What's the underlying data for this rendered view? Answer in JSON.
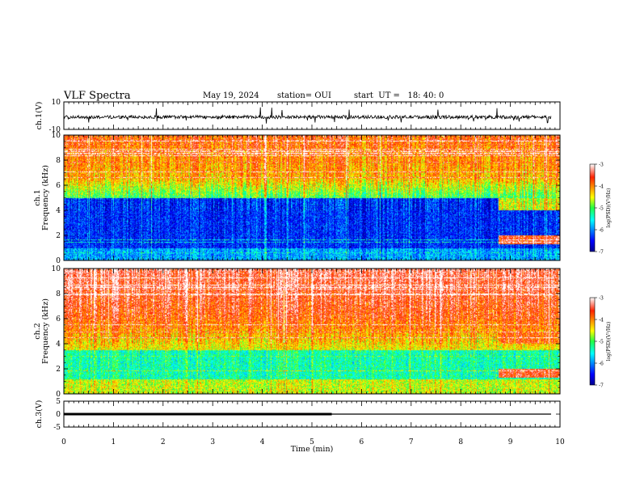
{
  "chart_data": [
    {
      "type": "line",
      "title": "VLF Spectra",
      "date": "May 19, 2024",
      "station": "station= OUI",
      "start": "start  UT =   18: 40: 0",
      "ylabel": "ch.1(V)",
      "ylim": [
        -10,
        10
      ],
      "yticks": [
        "10",
        "-10"
      ],
      "xlim": [
        0,
        10
      ],
      "series": [
        {
          "values_description": "noisy trace centered near -1 V",
          "baseline": -1.0,
          "noise_amplitude": 1.2,
          "spike_amplitude": 6
        }
      ]
    },
    {
      "type": "heatmap",
      "ylabel": "ch.1\nFrequency  (kHz)",
      "ylim": [
        0,
        10
      ],
      "yticks": [
        "0",
        "2",
        "4",
        "6",
        "8",
        "10"
      ],
      "xlim": [
        0,
        10
      ],
      "colorbar": {
        "label": "log(PSD)(V²/Hz)",
        "ticks": [
          "-3",
          "-4",
          "-5",
          "-6",
          "-7"
        ],
        "range": [
          -7,
          -3
        ]
      },
      "regime_change_min": 8.75
    },
    {
      "type": "heatmap",
      "ylabel": "ch.2\nFrequency  (kHz)",
      "ylim": [
        0,
        10
      ],
      "yticks": [
        "0",
        "2",
        "4",
        "6",
        "8",
        "10"
      ],
      "xlim": [
        0,
        10
      ],
      "colorbar": {
        "label": "log(PSD)(V²/Hz)",
        "ticks": [
          "-3",
          "-4",
          "-5",
          "-6",
          "-7"
        ],
        "range": [
          -7,
          -3
        ]
      },
      "regime_change_min": 8.75
    },
    {
      "type": "line",
      "ylabel": "ch.3(V)",
      "ylim": [
        -5,
        5
      ],
      "yticks": [
        "5",
        "0",
        "-5"
      ],
      "xlim": [
        0,
        10
      ],
      "xlabel": "Time  (min)",
      "xticks": [
        "0",
        "1",
        "2",
        "3",
        "4",
        "5",
        "6",
        "7",
        "8",
        "9",
        "10"
      ],
      "series": [
        {
          "values_description": "flat line",
          "value": 0,
          "thick_until_min": 5.4
        }
      ]
    }
  ],
  "colors": {
    "axes": "#000000",
    "trace": "#000000",
    "background": "#ffffff"
  }
}
